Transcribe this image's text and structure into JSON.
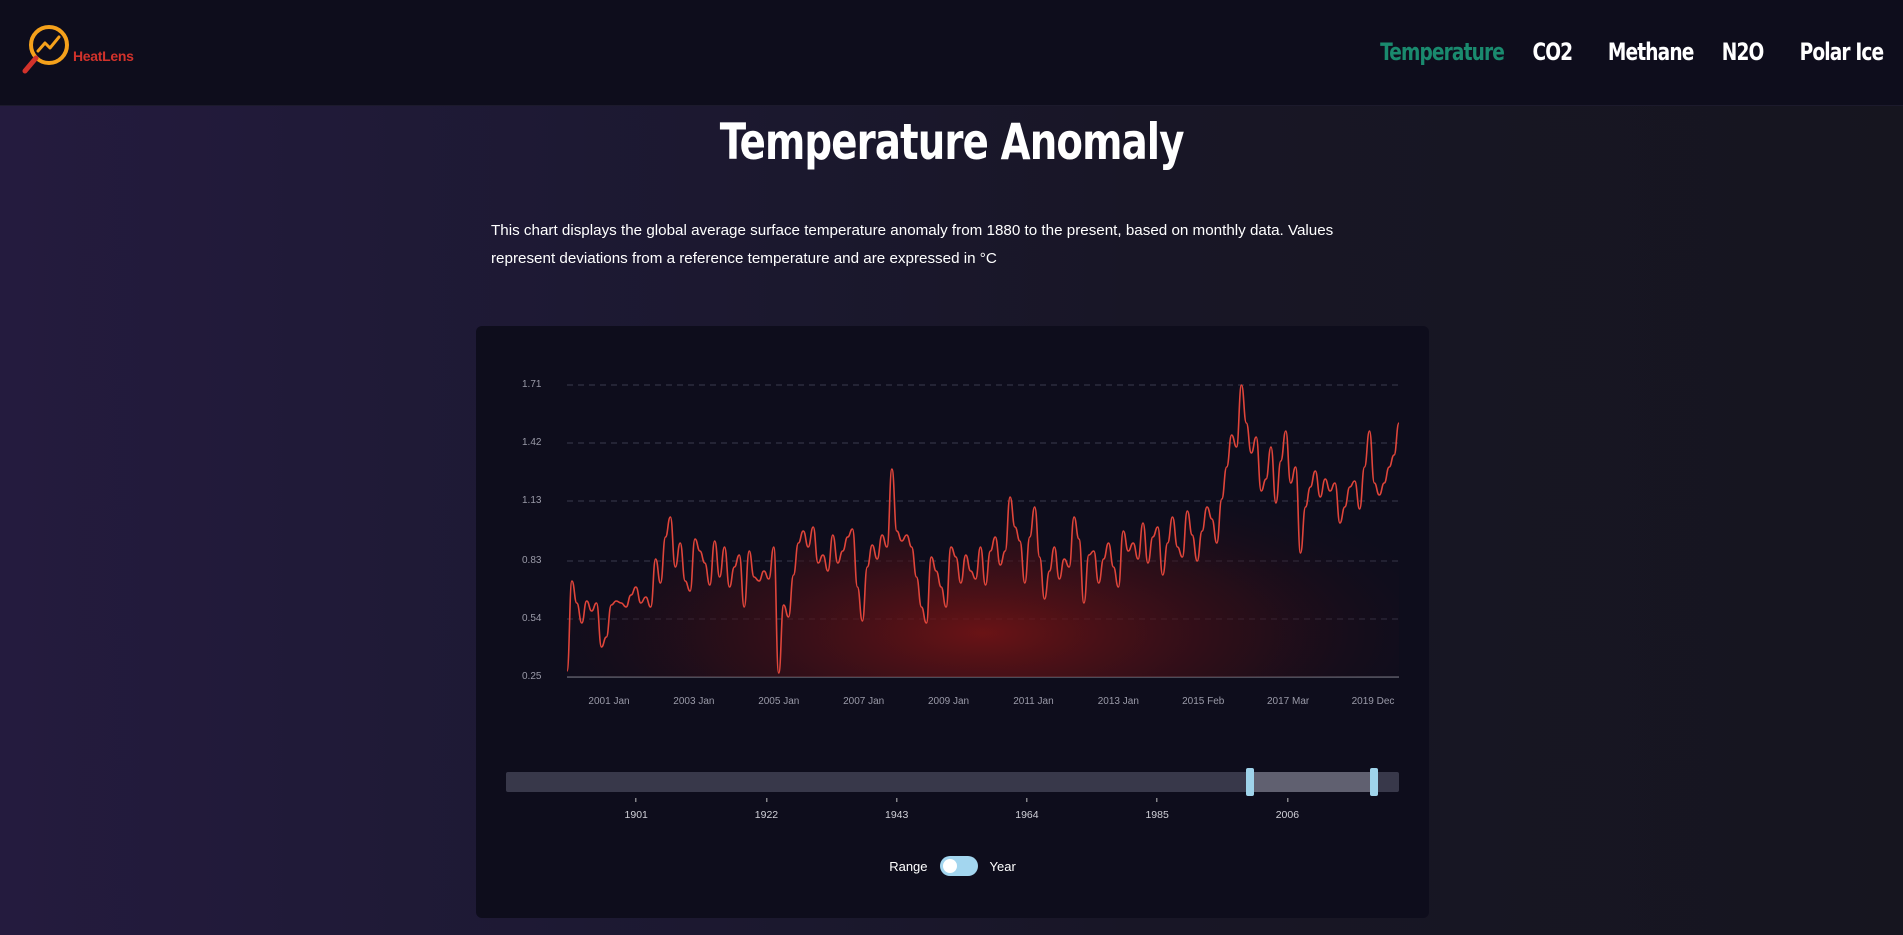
{
  "app": {
    "logo_text": "HeatLens"
  },
  "nav": {
    "items": [
      "Temperature",
      "CO2",
      "Methane",
      "N2O",
      "Polar Ice"
    ],
    "active": "Temperature"
  },
  "page": {
    "title": "Temperature Anomaly",
    "description": "This chart displays the global average surface temperature anomaly from 1880 to the present, based on monthly data. Values represent deviations from a reference temperature and are expressed in °C"
  },
  "colors": {
    "accent": "#1a8a6e",
    "line": "#e0453a",
    "logo": "#f5a11b",
    "handle": "#9fd3ea"
  },
  "chart_data": {
    "type": "area",
    "title": "",
    "xlabel": "",
    "ylabel": "",
    "y_ticks": [
      "0.25",
      "0.54",
      "0.83",
      "1.13",
      "1.42",
      "1.71"
    ],
    "ylim": [
      0.25,
      1.71
    ],
    "x_ticks": [
      "2001 Jan",
      "2003 Jan",
      "2005 Jan",
      "2007 Jan",
      "2009 Jan",
      "2011 Jan",
      "2013 Jan",
      "2015 Feb",
      "2017 Mar",
      "2019 Dec"
    ],
    "grid": true,
    "series": [
      {
        "values": [
          0.28,
          0.73,
          0.62,
          0.52,
          0.63,
          0.58,
          0.62,
          0.4,
          0.45,
          0.61,
          0.63,
          0.62,
          0.6,
          0.66,
          0.7,
          0.62,
          0.65,
          0.6,
          0.84,
          0.72,
          0.95,
          1.05,
          0.8,
          0.92,
          0.73,
          0.68,
          0.94,
          0.88,
          0.82,
          0.71,
          0.93,
          0.75,
          0.9,
          0.7,
          0.8,
          0.86,
          0.6,
          0.88,
          0.75,
          0.73,
          0.78,
          0.74,
          0.9,
          0.27,
          0.61,
          0.55,
          0.76,
          0.92,
          0.98,
          0.9,
          1.0,
          0.82,
          0.86,
          0.78,
          0.96,
          0.82,
          0.88,
          0.95,
          0.99,
          0.7,
          0.53,
          0.8,
          0.91,
          0.84,
          0.96,
          0.9,
          1.29,
          0.98,
          0.93,
          0.96,
          0.9,
          0.75,
          0.6,
          0.52,
          0.85,
          0.78,
          0.7,
          0.6,
          0.9,
          0.85,
          0.72,
          0.86,
          0.78,
          0.74,
          0.9,
          0.71,
          0.88,
          0.95,
          0.81,
          0.88,
          1.15,
          1.0,
          0.93,
          0.72,
          0.95,
          1.1,
          0.85,
          0.64,
          0.78,
          0.9,
          0.74,
          0.84,
          0.8,
          1.05,
          0.94,
          0.62,
          0.86,
          0.88,
          0.72,
          0.84,
          0.92,
          0.8,
          0.7,
          0.98,
          0.88,
          0.92,
          0.84,
          1.02,
          0.82,
          0.95,
          1.0,
          0.76,
          0.92,
          1.05,
          0.9,
          0.85,
          1.08,
          0.96,
          0.83,
          0.98,
          1.1,
          1.04,
          0.92,
          1.14,
          1.3,
          1.46,
          1.4,
          1.71,
          1.52,
          1.37,
          1.45,
          1.18,
          1.24,
          1.4,
          1.12,
          1.33,
          1.48,
          1.22,
          1.3,
          0.87,
          1.1,
          1.2,
          1.28,
          1.15,
          1.24,
          1.18,
          1.22,
          1.02,
          1.1,
          1.2,
          1.23,
          1.09,
          1.3,
          1.48,
          1.22,
          1.16,
          1.22,
          1.3,
          1.36,
          1.52
        ]
      }
    ]
  },
  "range_slider": {
    "ticks": [
      "1901",
      "1922",
      "1943",
      "1964",
      "1985",
      "2006"
    ],
    "min_year": 1880,
    "max_year": 2024,
    "selected_start": 2000,
    "selected_end": 2020
  },
  "toggle": {
    "left_label": "Range",
    "right_label": "Year",
    "state": "Range"
  }
}
